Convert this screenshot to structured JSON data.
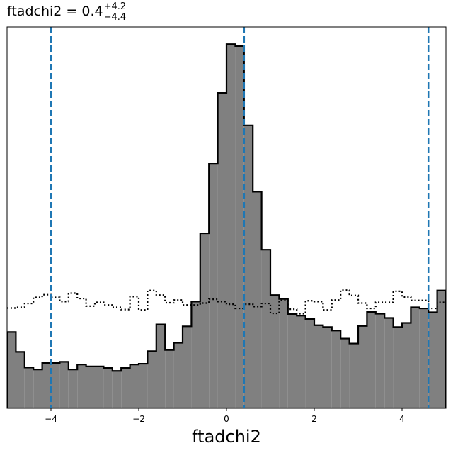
{
  "chart_data": {
    "type": "histogram",
    "title": {
      "main": "ftadchi2 = 0.4",
      "sup": "+4.2",
      "sub": "−4.4"
    },
    "xlabel": "ftadchi2",
    "ylabel": "",
    "xlim": [
      -5,
      5
    ],
    "ylim": [
      0,
      1.0
    ],
    "x_ticks": [
      -4,
      -2,
      0,
      2,
      4
    ],
    "x_tick_labels": [
      "−4",
      "−2",
      "0",
      "2",
      "4"
    ],
    "y_ticks_visible": false,
    "grid": false,
    "bin_edges": [
      -5.0,
      -4.8,
      -4.6,
      -4.4,
      -4.2,
      -4.0,
      -3.8,
      -3.6,
      -3.4,
      -3.2,
      -3.0,
      -2.8,
      -2.6,
      -2.4,
      -2.2,
      -2.0,
      -1.8,
      -1.6,
      -1.4,
      -1.2,
      -1.0,
      -0.8,
      -0.6,
      -0.4,
      -0.2,
      0.0,
      0.2,
      0.4,
      0.6,
      0.8,
      1.0,
      1.2,
      1.4,
      1.6,
      1.8,
      2.0,
      2.2,
      2.4,
      2.6,
      2.8,
      3.0,
      3.2,
      3.4,
      3.6,
      3.8,
      4.0,
      4.2,
      4.4,
      4.6,
      4.8,
      5.0
    ],
    "series": [
      {
        "style": "filled",
        "fill_color": "#808080",
        "edge_color": "#000000",
        "values": [
          0.2,
          0.148,
          0.107,
          0.102,
          0.119,
          0.119,
          0.122,
          0.102,
          0.115,
          0.11,
          0.11,
          0.106,
          0.098,
          0.106,
          0.115,
          0.117,
          0.15,
          0.22,
          0.153,
          0.172,
          0.215,
          0.28,
          0.459,
          0.641,
          0.827,
          0.955,
          0.95,
          0.742,
          0.568,
          0.416,
          0.297,
          0.287,
          0.247,
          0.243,
          0.234,
          0.218,
          0.213,
          0.204,
          0.183,
          0.17,
          0.216,
          0.253,
          0.248,
          0.237,
          0.213,
          0.224,
          0.265,
          0.262,
          0.252,
          0.309
        ]
      },
      {
        "style": "step-dotted",
        "edge_color": "#000000",
        "values": [
          0.263,
          0.265,
          0.275,
          0.291,
          0.298,
          0.291,
          0.28,
          0.302,
          0.288,
          0.268,
          0.278,
          0.271,
          0.265,
          0.259,
          0.293,
          0.258,
          0.309,
          0.297,
          0.277,
          0.284,
          0.271,
          0.271,
          0.276,
          0.286,
          0.28,
          0.273,
          0.262,
          0.273,
          0.267,
          0.275,
          0.249,
          0.283,
          0.26,
          0.248,
          0.282,
          0.28,
          0.258,
          0.284,
          0.31,
          0.296,
          0.276,
          0.262,
          0.278,
          0.278,
          0.307,
          0.292,
          0.283,
          0.283,
          0.262,
          0.278
        ]
      }
    ],
    "vlines": [
      {
        "x": -4.0,
        "color": "#1f77b4",
        "style": "dashed"
      },
      {
        "x": 0.4,
        "color": "#1f77b4",
        "style": "dashed"
      },
      {
        "x": 4.6,
        "color": "#1f77b4",
        "style": "dashed"
      }
    ]
  }
}
